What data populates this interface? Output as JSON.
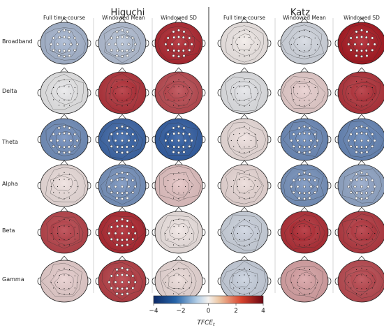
{
  "groups": [
    {
      "title": "Higuchi",
      "columns": [
        "Full time-course",
        "Windowed Mean",
        "Windowed SD"
      ]
    },
    {
      "title": "Katz",
      "columns": [
        "Full time-course",
        "Windowed Mean",
        "Windowed SD"
      ]
    }
  ],
  "rows": [
    "Broadband",
    "Delta",
    "Theta",
    "Alpha",
    "Beta",
    "Gamma"
  ],
  "maps": [
    [
      [
        -1.4,
        -1.2,
        3.6,
        0.1,
        -0.6,
        3.9
      ],
      [
        -0.2,
        3.4,
        3.0,
        -0.3,
        0.6,
        3.4
      ],
      [
        -2.4,
        -3.4,
        -3.6,
        0.3,
        -2.5,
        -2.6
      ],
      [
        0.3,
        -2.3,
        0.8,
        0.4,
        -2.3,
        -1.8
      ],
      [
        3.1,
        3.6,
        0.2,
        -0.7,
        3.5,
        3.3
      ],
      [
        0.6,
        3.2,
        0.4,
        -0.8,
        1.4,
        3.0
      ]
    ]
  ],
  "significant": [
    [
      [
        true,
        true,
        true,
        false,
        false,
        true
      ],
      [
        false,
        false,
        false,
        false,
        false,
        false
      ],
      [
        true,
        true,
        true,
        false,
        true,
        true
      ],
      [
        false,
        true,
        false,
        false,
        true,
        true
      ],
      [
        false,
        true,
        false,
        false,
        false,
        false
      ],
      [
        false,
        true,
        false,
        false,
        false,
        false
      ]
    ]
  ],
  "colorbar": {
    "ticks": [
      "−4",
      "−2",
      "0",
      "2",
      "4"
    ],
    "label": "TFCE",
    "label_subscript": "t",
    "min": -4,
    "max": 4,
    "low_color": "#1d4f9c",
    "mid_color": "#f4f1ee",
    "high_color": "#a8121c"
  }
}
